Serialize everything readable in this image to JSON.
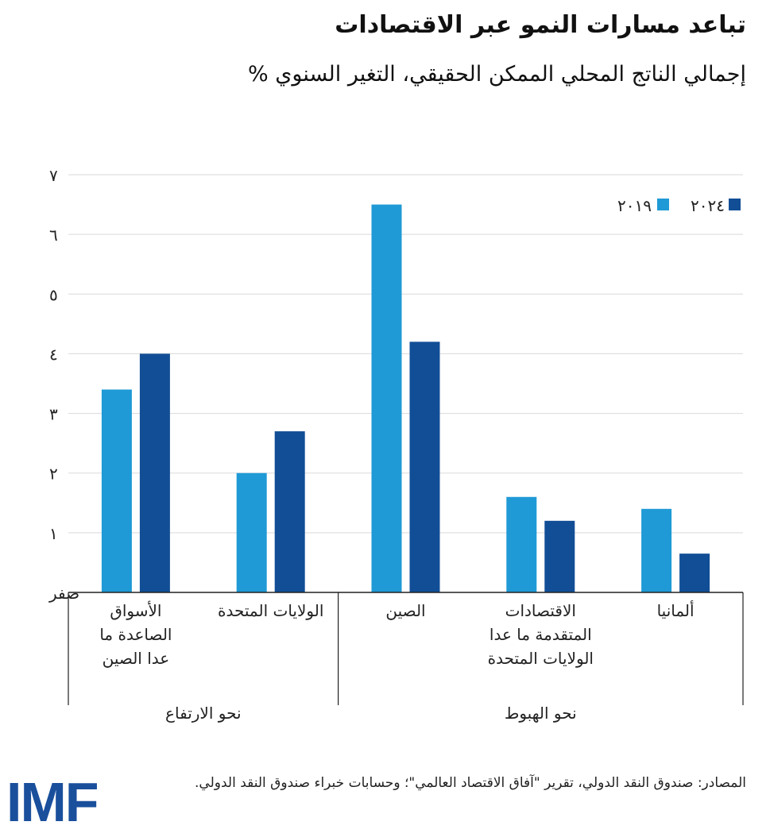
{
  "title": "تباعد مسارات النمو عبر الاقتصادات",
  "subtitle": "إجمالي الناتج المحلي الممكن الحقيقي، التغير السنوي %",
  "source": "المصادر: صندوق النقد الدولي، تقرير \"آفاق الاقتصاد العالمي\"؛ وحسابات خبراء صندوق النقد الدولي.",
  "logo": "IMF",
  "colors": {
    "2019": "#1f9ad6",
    "2024": "#114e96"
  },
  "chart_data": {
    "type": "bar",
    "title": "تباعد مسارات النمو عبر الاقتصادات",
    "ylabel": "",
    "ylim": [
      0,
      7
    ],
    "yticks": [
      0,
      1,
      2,
      3,
      4,
      5,
      6,
      7
    ],
    "ytick_labels": [
      "صفر",
      "١",
      "٢",
      "٣",
      "٤",
      "٥",
      "٦",
      "٧"
    ],
    "grid": true,
    "legend": "top-right",
    "categories": [
      [
        "الأسواق",
        "الصاعدة ما",
        "عدا الصين"
      ],
      [
        "الولايات المتحدة"
      ],
      [
        "الصين"
      ],
      [
        "الاقتصادات",
        "المتقدمة ما عدا",
        "الولايات المتحدة"
      ],
      [
        "ألمانيا"
      ]
    ],
    "groups": [
      {
        "label": "نحو الارتفاع",
        "categories": [
          0,
          1
        ]
      },
      {
        "label": "نحو  الهبوط",
        "categories": [
          2,
          3,
          4
        ]
      }
    ],
    "series": [
      {
        "name": "٢٠١٩",
        "key": "2019",
        "values": [
          3.4,
          2.0,
          6.5,
          1.6,
          1.4
        ]
      },
      {
        "name": "٢٠٢٤",
        "key": "2024",
        "values": [
          4.0,
          2.7,
          4.2,
          1.2,
          0.65
        ]
      }
    ]
  }
}
